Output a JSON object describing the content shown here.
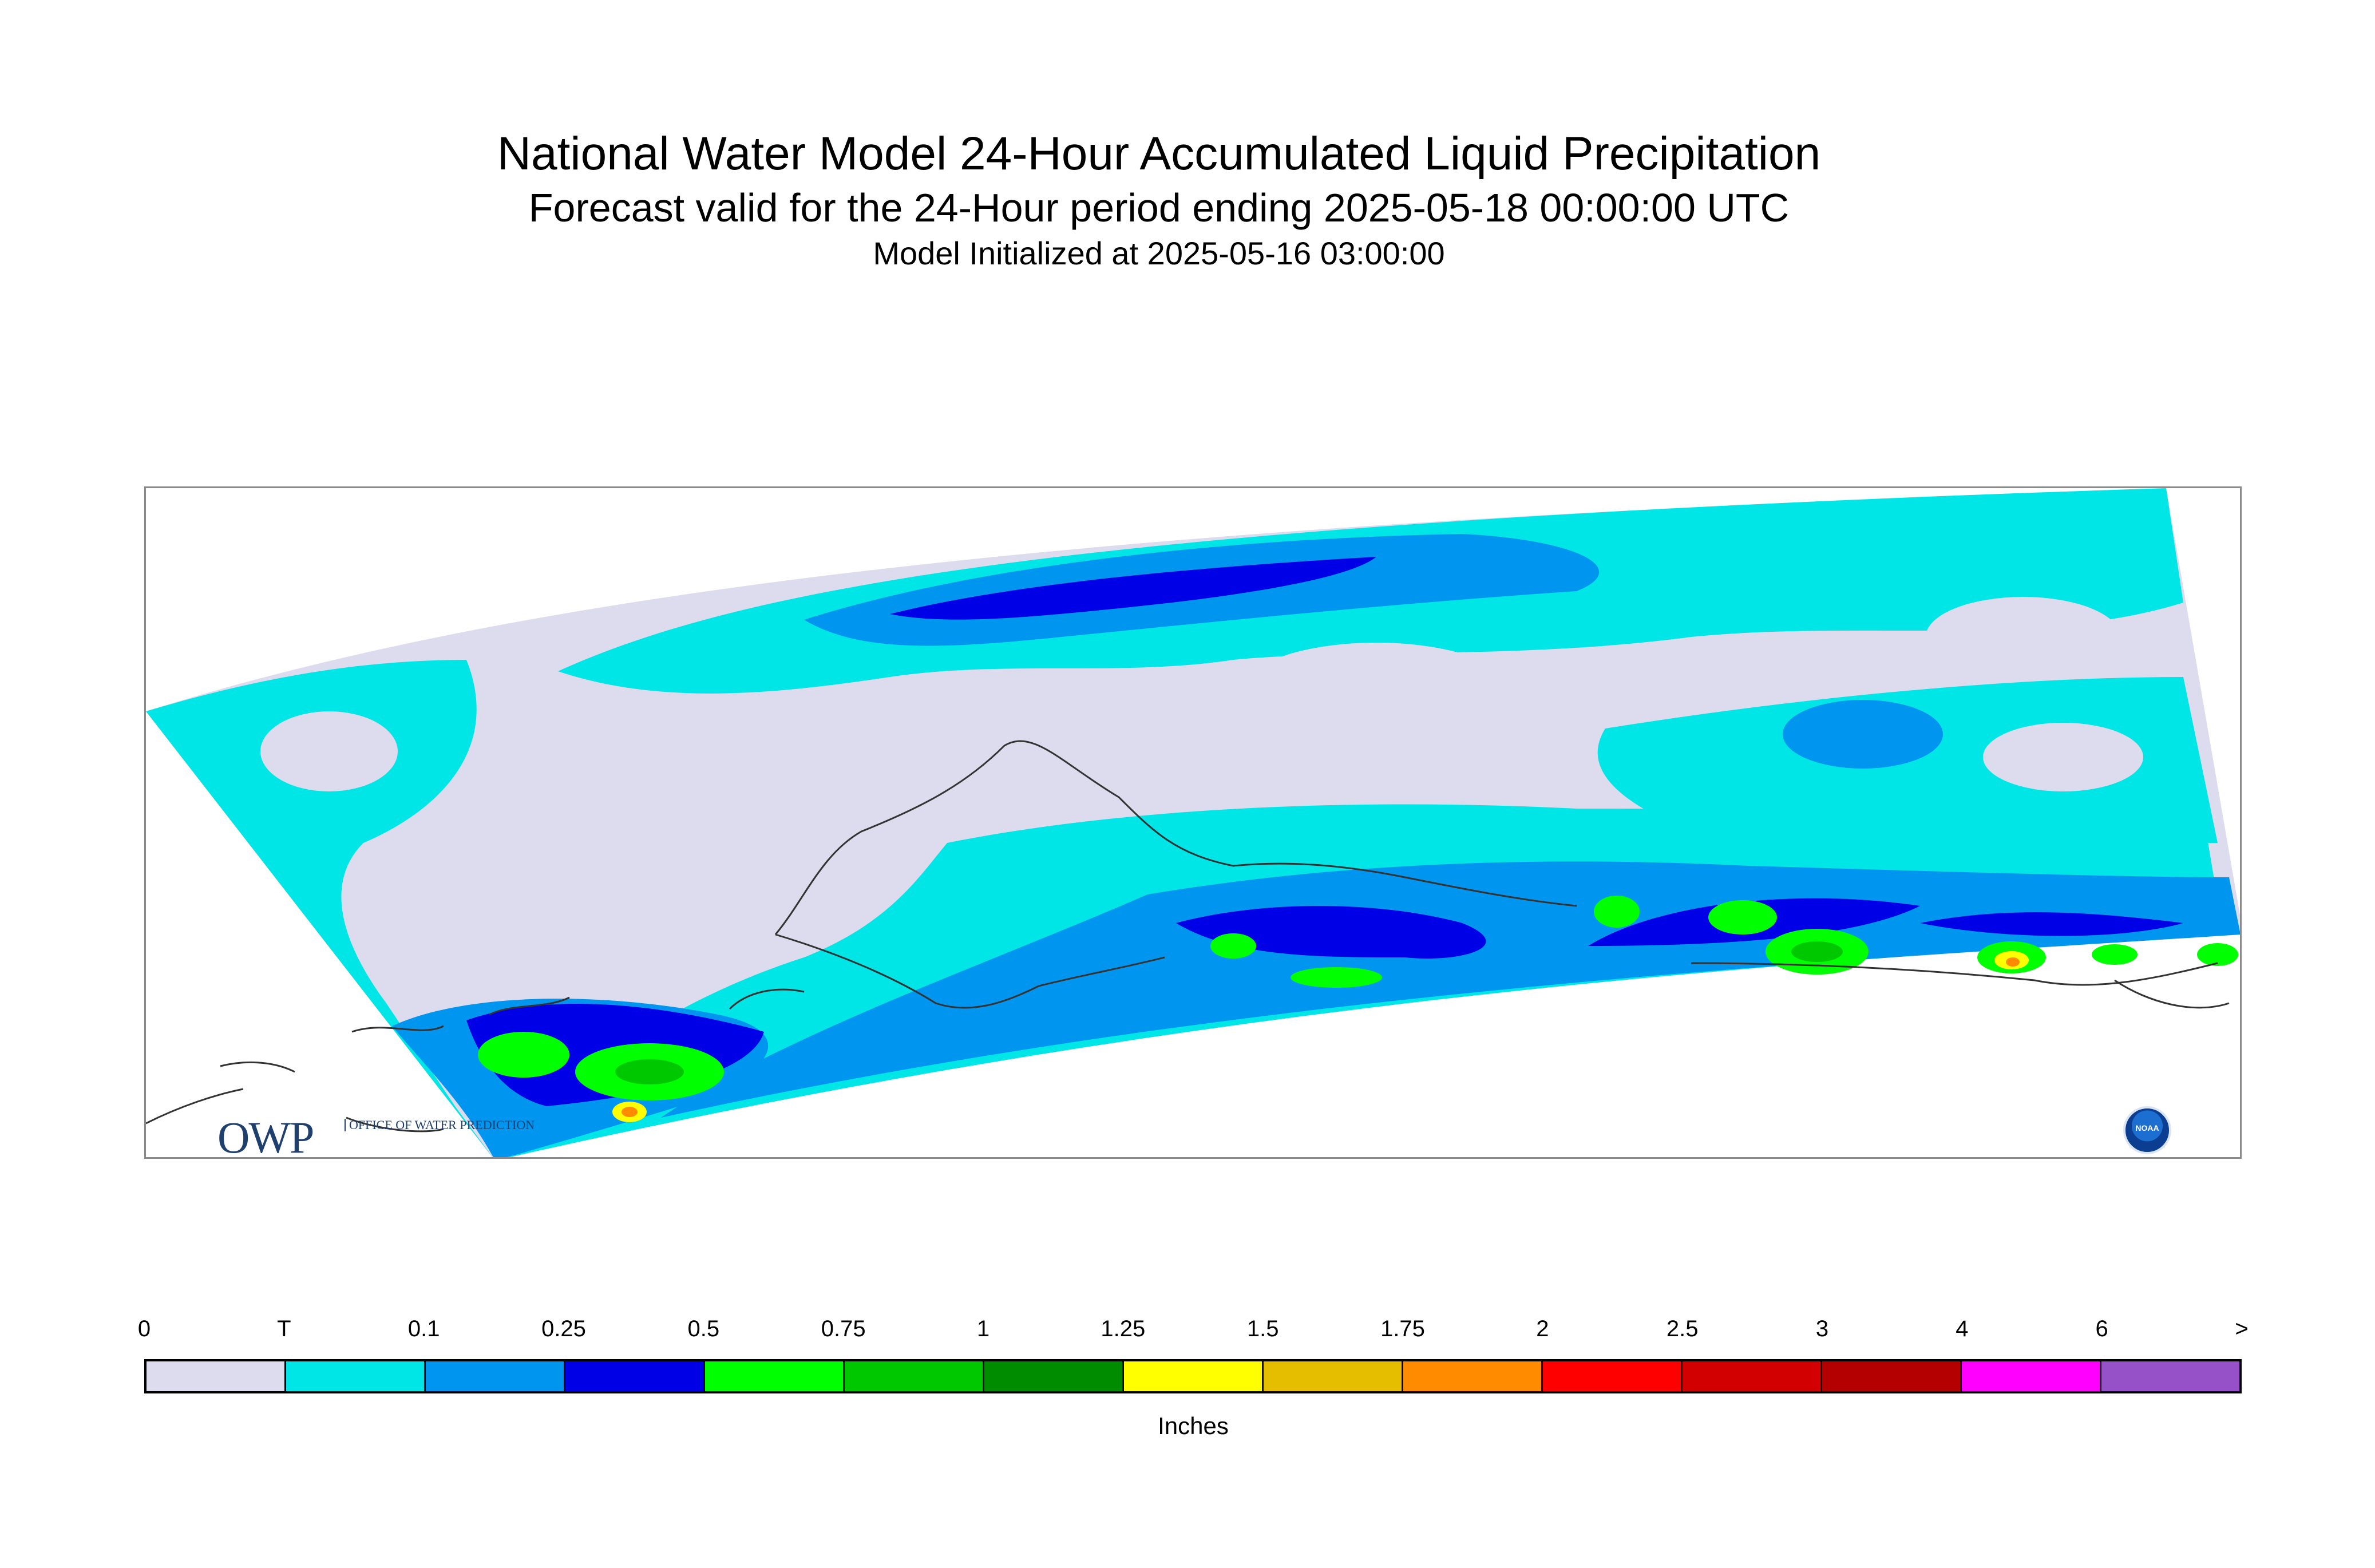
{
  "title": "National Water Model 24-Hour Accumulated Liquid Precipitation",
  "subtitle": "Forecast valid for the 24-Hour period ending 2025-05-18 00:00:00 UTC",
  "init_line": "Model Initialized at 2025-05-16 03:00:00",
  "logo_owp": {
    "big": "OWP",
    "small": "OFFICE OF WATER PREDICTION"
  },
  "logo_noaa": "NOAA",
  "legend": {
    "units": "Inches",
    "ticks": [
      "0",
      "T",
      "0.1",
      "0.25",
      "0.5",
      "0.75",
      "1",
      "1.25",
      "1.5",
      "1.75",
      "2",
      "2.5",
      "3",
      "4",
      "6",
      ">"
    ],
    "colors": [
      "#dcdcee",
      "#00e5e5",
      "#0096f0",
      "#0000e6",
      "#00ff00",
      "#00c800",
      "#008c00",
      "#ffff00",
      "#e6be00",
      "#ff8c00",
      "#ff0000",
      "#d20000",
      "#b40000",
      "#ff00ff",
      "#9650c8"
    ]
  },
  "map_colors": {
    "trace": "#dcdcee",
    "light": "#00e5e5",
    "medium": "#0096f0",
    "heavy": "#0000e6",
    "green1": "#00ff00",
    "green2": "#00c800",
    "green3": "#008c00",
    "yellow": "#ffff00",
    "orange": "#ff8c00",
    "coast": "#333333"
  }
}
